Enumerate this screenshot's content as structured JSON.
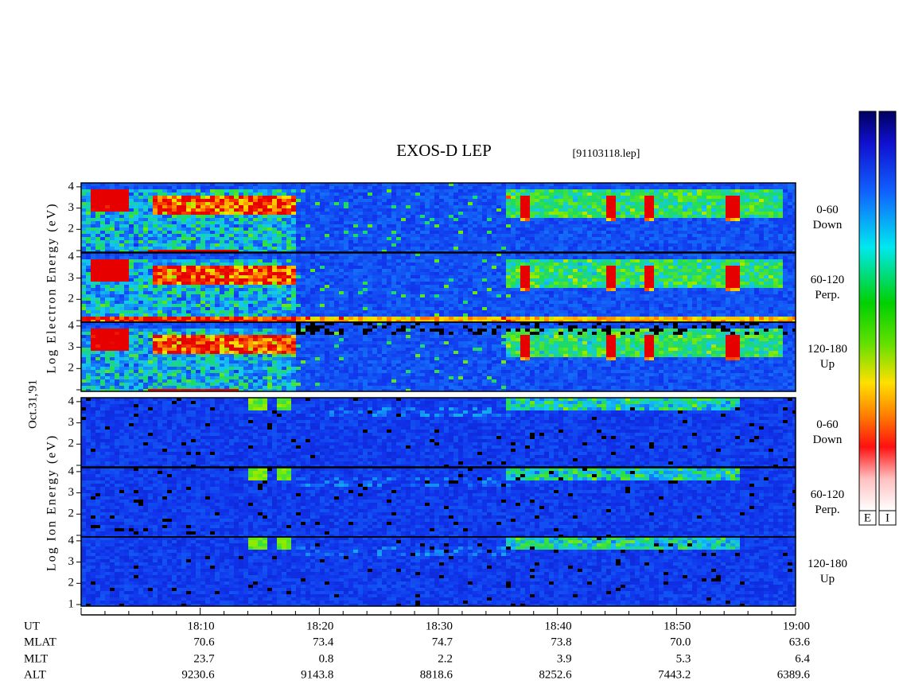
{
  "header": {
    "title": "EXOS-D LEP",
    "file": "[91103118.lep]"
  },
  "axis_labels": {
    "electron": "Log Electron Energy (eV)",
    "date": "Oct.31,'91",
    "ion": "Log Ion Energy (eV)"
  },
  "panels": [
    {
      "ticks": [
        "2",
        "3",
        "4"
      ],
      "label": [
        "0-60",
        "Down"
      ]
    },
    {
      "ticks": [
        "2",
        "3",
        "4"
      ],
      "label": [
        "60-120",
        "Perp."
      ]
    },
    {
      "ticks": [
        "2",
        "3",
        "4"
      ],
      "label": [
        "120-180",
        "Up"
      ]
    },
    {
      "ticks": [
        "2",
        "3",
        "4"
      ],
      "label": [
        "0-60",
        "Down"
      ]
    },
    {
      "ticks": [
        "2",
        "3",
        "4"
      ],
      "label": [
        "60-120",
        "Perp."
      ]
    },
    {
      "ticks": [
        "1",
        "2",
        "3",
        "4"
      ],
      "label": [
        "120-180",
        "Up"
      ]
    }
  ],
  "colorbars": [
    "E",
    "I"
  ],
  "footer": {
    "rows": [
      {
        "name": "UT",
        "values": [
          "18:10",
          "18:20",
          "18:30",
          "18:40",
          "18:50",
          "19:00"
        ]
      },
      {
        "name": "MLAT",
        "values": [
          "70.6",
          "73.4",
          "74.7",
          "73.8",
          "70.0",
          "63.6"
        ]
      },
      {
        "name": "MLT",
        "values": [
          "23.7",
          "0.8",
          "2.2",
          "3.9",
          "5.3",
          "6.4"
        ]
      },
      {
        "name": "ALT",
        "values": [
          "9230.6",
          "9143.8",
          "8818.6",
          "8252.6",
          "7443.2",
          "6389.6"
        ]
      }
    ]
  }
}
